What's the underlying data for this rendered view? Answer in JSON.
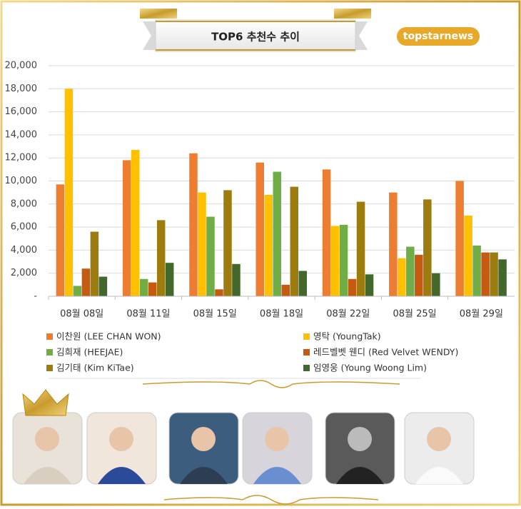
{
  "chart_data": {
    "type": "bar",
    "title": "TOP6 추천수 추이",
    "source": "topstarnews",
    "categories": [
      "08월 08일",
      "08월 11일",
      "08월 15일",
      "08월 18일",
      "08월 22일",
      "08월 25일",
      "08월 29일"
    ],
    "series": [
      {
        "name": "이찬원 (LEE CHAN WON)",
        "color": "#ed7d31",
        "values": [
          9700,
          11800,
          12400,
          11600,
          11000,
          9000,
          10000
        ]
      },
      {
        "name": "영탁 (YoungTak)",
        "color": "#ffc000",
        "values": [
          18000,
          12700,
          9000,
          8800,
          6100,
          3300,
          7000
        ]
      },
      {
        "name": "김희재 (HEEJAE)",
        "color": "#70ad47",
        "values": [
          900,
          1500,
          6900,
          10800,
          6200,
          4300,
          4400
        ]
      },
      {
        "name": "레드벨벳 웬디 (Red Velvet WENDY)",
        "color": "#c55a11",
        "values": [
          2400,
          1200,
          600,
          1000,
          1500,
          3600,
          3800
        ]
      },
      {
        "name": "김기태 (Kim KiTae)",
        "color": "#9c7b0f",
        "values": [
          5600,
          6600,
          9200,
          9500,
          8200,
          8400,
          3800
        ]
      },
      {
        "name": "임영웅 (Young Woong Lim)",
        "color": "#43682b",
        "values": [
          1700,
          2900,
          2800,
          2200,
          1900,
          2000,
          3200
        ]
      }
    ],
    "ylim": [
      0,
      20000
    ],
    "yticks": [
      {
        "value": 0,
        "label": "-"
      },
      {
        "value": 2000,
        "label": "2,000"
      },
      {
        "value": 4000,
        "label": "4,000"
      },
      {
        "value": 6000,
        "label": "6,000"
      },
      {
        "value": 8000,
        "label": "8,000"
      },
      {
        "value": 10000,
        "label": "10,000"
      },
      {
        "value": 12000,
        "label": "12,000"
      },
      {
        "value": 14000,
        "label": "14,000"
      },
      {
        "value": 16000,
        "label": "16,000"
      },
      {
        "value": 18000,
        "label": "18,000"
      },
      {
        "value": 20000,
        "label": "20,000"
      }
    ],
    "grid": true
  }
}
